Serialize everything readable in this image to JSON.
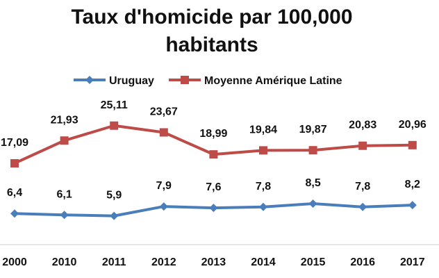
{
  "chart_data": {
    "type": "line",
    "title_lines": [
      "Taux d'homicide par 100,000",
      "habitants"
    ],
    "categories": [
      "2000",
      "2010",
      "2011",
      "2012",
      "2013",
      "2014",
      "2015",
      "2016",
      "2017"
    ],
    "series": [
      {
        "name": "Uruguay",
        "color": "#4a7ebb",
        "marker": "diamond",
        "values": [
          6.4,
          6.1,
          5.9,
          7.9,
          7.6,
          7.8,
          8.5,
          7.8,
          8.2
        ],
        "labels": [
          "6,4",
          "6,1",
          "5,9",
          "7,9",
          "7,6",
          "7,8",
          "8,5",
          "7,8",
          "8,2"
        ]
      },
      {
        "name": "Moyenne Amérique Latine",
        "color": "#be4b48",
        "marker": "square",
        "values": [
          17.09,
          21.93,
          25.11,
          23.67,
          18.99,
          19.84,
          19.87,
          20.83,
          20.96
        ],
        "labels": [
          "17,09",
          "21,93",
          "25,11",
          "23,67",
          "18,99",
          "19,84",
          "19,87",
          "20,83",
          "20,96"
        ]
      }
    ],
    "ylim": [
      0,
      30
    ],
    "grid": false,
    "legend_position": "top"
  }
}
